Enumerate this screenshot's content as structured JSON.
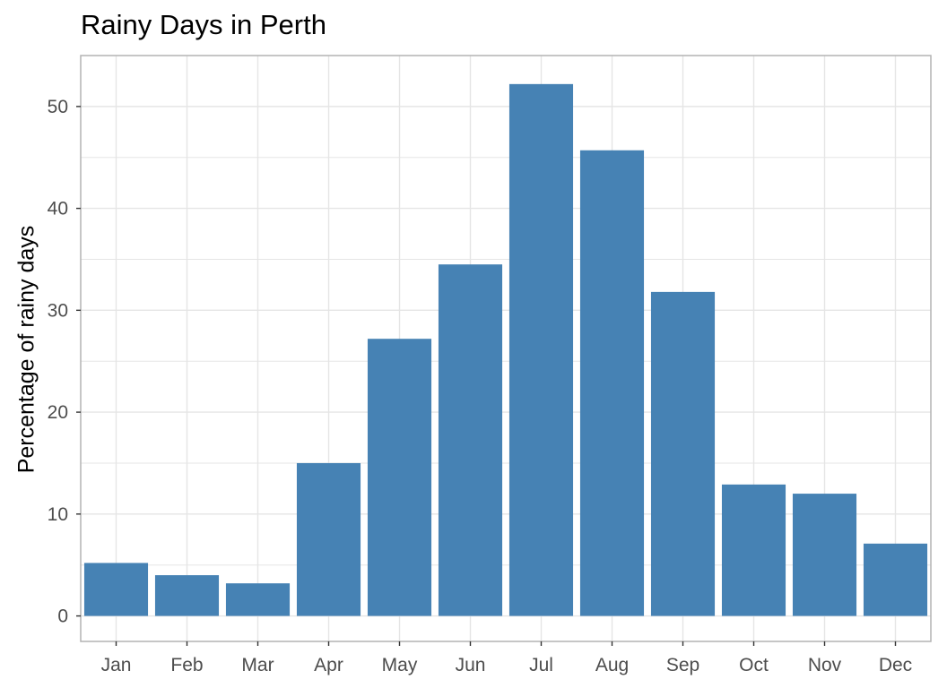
{
  "chart_data": {
    "type": "bar",
    "title": "Rainy Days in Perth",
    "xlabel": "",
    "ylabel": "Percentage of rainy days",
    "categories": [
      "Jan",
      "Feb",
      "Mar",
      "Apr",
      "May",
      "Jun",
      "Jul",
      "Aug",
      "Sep",
      "Oct",
      "Nov",
      "Dec"
    ],
    "values": [
      5.2,
      4.0,
      3.2,
      15.0,
      27.2,
      34.5,
      52.2,
      45.7,
      31.8,
      12.9,
      12.0,
      7.1
    ],
    "ylim": [
      -2.5,
      55
    ],
    "yticks": [
      0,
      10,
      20,
      30,
      40,
      50
    ],
    "grid": true,
    "bar_color": "#4682B4",
    "grid_color": "#e5e5e5",
    "panel_border_color": "#b3b3b3"
  }
}
